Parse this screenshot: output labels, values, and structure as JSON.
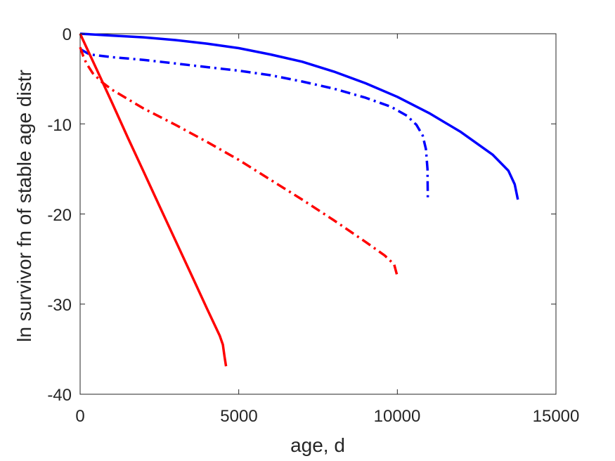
{
  "chart_data": {
    "type": "line",
    "title": "",
    "xlabel": "age, d",
    "ylabel": "ln survivor fn of stable age distr",
    "xlim": [
      0,
      15000
    ],
    "ylim": [
      -40,
      0
    ],
    "xticks": [
      "0",
      "5000",
      "10000",
      "15000"
    ],
    "yticks": [
      "0",
      "-10",
      "-20",
      "-30",
      "-40"
    ],
    "grid": false,
    "legend": "none",
    "series": [
      {
        "color": "#0000ff",
        "style": "solid",
        "x": [
          0,
          1000,
          2000,
          3000,
          4000,
          5000,
          6000,
          7000,
          8000,
          9000,
          10000,
          11000,
          12000,
          13000,
          13500,
          13700,
          13800
        ],
        "y": [
          0,
          -0.2,
          -0.4,
          -0.7,
          -1.1,
          -1.6,
          -2.3,
          -3.1,
          -4.2,
          -5.5,
          -7.0,
          -8.8,
          -10.9,
          -13.4,
          -15.2,
          -16.7,
          -18.4
        ]
      },
      {
        "color": "#0000ff",
        "style": "dashdot",
        "x": [
          0,
          100,
          300,
          1000,
          2000,
          3000,
          4000,
          5000,
          6000,
          7000,
          8000,
          9000,
          9800,
          10300,
          10600,
          10800,
          10900,
          10950,
          10960
        ],
        "y": [
          -1.7,
          -1.9,
          -2.3,
          -2.6,
          -2.9,
          -3.3,
          -3.7,
          -4.1,
          -4.6,
          -5.3,
          -6.1,
          -7.1,
          -8.1,
          -9.1,
          -10.1,
          -11.3,
          -12.8,
          -15.0,
          -18.4
        ]
      },
      {
        "color": "#ff0000",
        "style": "dashdot",
        "x": [
          0,
          100,
          200,
          400,
          700,
          1000,
          2000,
          3000,
          4000,
          5000,
          6000,
          7000,
          8000,
          9000,
          9600,
          9900,
          10000
        ],
        "y": [
          -1.5,
          -2.5,
          -3.3,
          -4.4,
          -5.4,
          -6.2,
          -8.3,
          -10.1,
          -12.0,
          -14.0,
          -16.2,
          -18.4,
          -20.7,
          -23.1,
          -24.6,
          -25.6,
          -26.9
        ]
      },
      {
        "color": "#ff0000",
        "style": "solid",
        "x": [
          0,
          500,
          1000,
          1500,
          2000,
          2500,
          3000,
          3500,
          4000,
          4400,
          4500,
          4550,
          4600
        ],
        "y": [
          0,
          -3.8,
          -7.6,
          -11.5,
          -15.3,
          -19.1,
          -22.9,
          -26.7,
          -30.5,
          -33.5,
          -34.5,
          -35.8,
          -36.9
        ]
      }
    ]
  }
}
